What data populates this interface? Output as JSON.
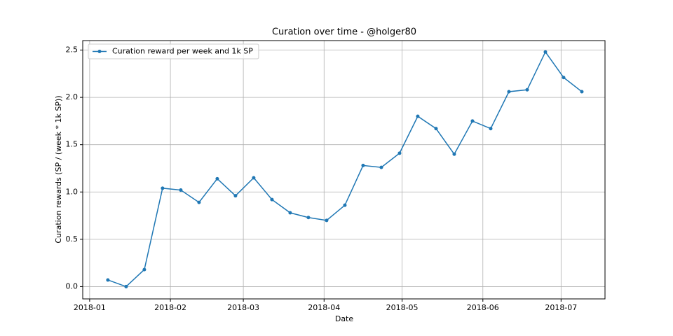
{
  "chart_data": {
    "type": "line",
    "title": "Curation over time - @holger80",
    "x_label": "Date",
    "y_label": "Curation rewards (SP / (week * 1k SP))",
    "categories": [
      null,
      null,
      null,
      null,
      null,
      null,
      null,
      null,
      null,
      null,
      null,
      null,
      null,
      null,
      null,
      null,
      null,
      null,
      null,
      null,
      null,
      null,
      null,
      null,
      null,
      null,
      null
    ],
    "series": [
      {
        "name": "Curation reward per week and 1k SP",
        "color": "#1f77b4",
        "values": [
          0.07,
          0.0,
          0.18,
          1.04,
          1.02,
          0.89,
          1.14,
          0.96,
          1.15,
          0.92,
          0.78,
          0.73,
          0.7,
          0.86,
          1.28,
          1.26,
          1.41,
          1.8,
          1.67,
          1.4,
          1.75,
          1.67,
          2.06,
          2.08,
          2.48,
          2.21,
          2.06
        ]
      }
    ],
    "xlim": [
      -1.38,
      27.27
    ],
    "xticks": [
      {
        "value": -1,
        "label": "2018-01"
      },
      {
        "value": 3.43,
        "label": "2018-02"
      },
      {
        "value": 7.43,
        "label": "2018-03"
      },
      {
        "value": 11.86,
        "label": "2018-04"
      },
      {
        "value": 16.14,
        "label": "2018-05"
      },
      {
        "value": 20.57,
        "label": "2018-06"
      },
      {
        "value": 24.86,
        "label": "2018-07"
      }
    ],
    "ylim": [
      -0.13,
      2.6
    ],
    "yticks": [
      {
        "value": 0,
        "label": "0.0"
      },
      {
        "value": 0.5,
        "label": "0.5"
      },
      {
        "value": 1,
        "label": "1.0"
      },
      {
        "value": 1.5,
        "label": "1.5"
      },
      {
        "value": 2,
        "label": "2.0"
      },
      {
        "value": 2.5,
        "label": "2.5"
      }
    ],
    "grid": true,
    "legend": "upper left"
  }
}
